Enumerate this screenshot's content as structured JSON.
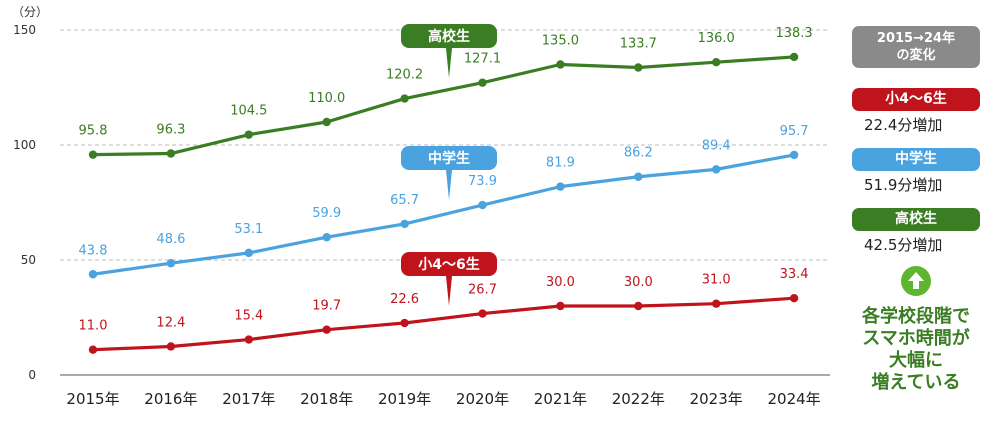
{
  "chart_data": {
    "type": "line",
    "ylabel": "（分）",
    "ylim": [
      0,
      150
    ],
    "yticks": [
      "0",
      "50",
      "100",
      "150"
    ],
    "categories": [
      "2015年",
      "2016年",
      "2017年",
      "2018年",
      "2019年",
      "2020年",
      "2021年",
      "2022年",
      "2023年",
      "2024年"
    ],
    "grid": "horizontal dashed",
    "series": [
      {
        "name": "高校生",
        "color": "#3a7d23",
        "values": [
          95.8,
          96.3,
          104.5,
          110.0,
          120.2,
          127.1,
          135.0,
          133.7,
          136.0,
          138.3
        ],
        "labels": [
          "95.8",
          "96.3",
          "104.5",
          "110.0",
          "120.2",
          "127.1",
          "135.0",
          "133.7",
          "136.0",
          "138.3"
        ]
      },
      {
        "name": "中学生",
        "color": "#4aa3df",
        "values": [
          43.8,
          48.6,
          53.1,
          59.9,
          65.7,
          73.9,
          81.9,
          86.2,
          89.4,
          95.7
        ],
        "labels": [
          "43.8",
          "48.6",
          "53.1",
          "59.9",
          "65.7",
          "73.9",
          "81.9",
          "86.2",
          "89.4",
          "95.7"
        ]
      },
      {
        "name": "小4～6生",
        "color": "#c0141c",
        "values": [
          11.0,
          12.4,
          15.4,
          19.7,
          22.6,
          26.7,
          30.0,
          30.0,
          31.0,
          33.4
        ],
        "labels": [
          "11.0",
          "12.4",
          "15.4",
          "19.7",
          "22.6",
          "26.7",
          "30.0",
          "30.0",
          "31.0",
          "33.4"
        ]
      }
    ]
  },
  "legend": {
    "header": "2015→24年\nの変化",
    "items": [
      {
        "name": "小4～6生",
        "increase": "22.4分増加"
      },
      {
        "name": "中学生",
        "increase": "51.9分増加"
      },
      {
        "name": "高校生",
        "increase": "42.5分増加"
      }
    ],
    "conclusion": "各学校段階で\nスマホ時間が\n大幅に\n増えている",
    "arrow_icon": "up-arrow-icon",
    "colors": {
      "header": "#8a8a8a",
      "elementary": "#c0141c",
      "junior": "#4aa3df",
      "high": "#3a7d23",
      "arrow": "#5eb52f"
    }
  }
}
